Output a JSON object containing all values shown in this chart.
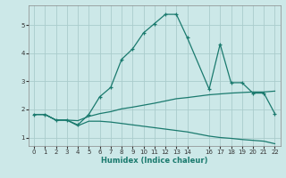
{
  "xlabel": "Humidex (Indice chaleur)",
  "bg_color": "#cce8e8",
  "grid_color": "#aacccc",
  "line_color": "#1a7a6e",
  "xlim": [
    -0.5,
    22.5
  ],
  "ylim": [
    0.7,
    5.7
  ],
  "xticks": [
    0,
    1,
    2,
    3,
    4,
    5,
    6,
    7,
    8,
    9,
    10,
    11,
    12,
    13,
    14,
    16,
    17,
    18,
    19,
    20,
    21,
    22
  ],
  "yticks": [
    1,
    2,
    3,
    4,
    5
  ],
  "line1_x": [
    0,
    1,
    2,
    3,
    4,
    5,
    6,
    7,
    8,
    9,
    10,
    11,
    12,
    13,
    14,
    16,
    17,
    18,
    19,
    20,
    21,
    22
  ],
  "line1_y": [
    1.82,
    1.82,
    1.62,
    1.62,
    1.45,
    1.82,
    2.45,
    2.78,
    3.78,
    4.15,
    4.72,
    5.05,
    5.38,
    5.38,
    4.55,
    2.72,
    4.32,
    2.95,
    2.95,
    2.58,
    2.58,
    1.85
  ],
  "line2_x": [
    0,
    1,
    2,
    3,
    4,
    5,
    6,
    7,
    8,
    9,
    10,
    11,
    12,
    13,
    14,
    16,
    17,
    18,
    19,
    20,
    21,
    22
  ],
  "line2_y": [
    1.82,
    1.82,
    1.62,
    1.62,
    1.6,
    1.75,
    1.85,
    1.92,
    2.02,
    2.08,
    2.15,
    2.22,
    2.3,
    2.38,
    2.42,
    2.52,
    2.55,
    2.58,
    2.6,
    2.62,
    2.62,
    2.65
  ],
  "line3_x": [
    0,
    1,
    2,
    3,
    4,
    5,
    6,
    7,
    8,
    9,
    10,
    11,
    12,
    13,
    14,
    16,
    17,
    18,
    19,
    20,
    21,
    22
  ],
  "line3_y": [
    1.82,
    1.82,
    1.62,
    1.62,
    1.42,
    1.58,
    1.58,
    1.55,
    1.5,
    1.45,
    1.4,
    1.35,
    1.3,
    1.25,
    1.2,
    1.05,
    1.0,
    0.97,
    0.93,
    0.9,
    0.87,
    0.78
  ]
}
